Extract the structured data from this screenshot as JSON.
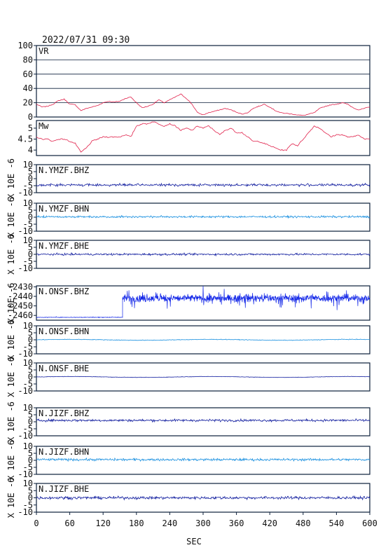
{
  "header": {
    "datetime": "2022/07/31 09:30"
  },
  "colors": {
    "frame": "#0b1f3a",
    "grid": "#0b1f3a",
    "vr": "#e0204a",
    "mw": "#e0204a",
    "dark_trace": "#1420a0",
    "light_trace": "#1a90e0",
    "vertical_trace": "#1428e8"
  },
  "chart_data": {
    "type": "line",
    "xlabel": "SEC",
    "xlim": [
      0,
      600
    ],
    "xticks": [
      0,
      60,
      120,
      180,
      240,
      300,
      360,
      420,
      480,
      540,
      600
    ],
    "panels": [
      {
        "label": "VR",
        "ylim": [
          0,
          100
        ],
        "yticks": [
          0,
          20,
          40,
          60,
          80,
          100
        ],
        "ylabel": "",
        "grid": true,
        "color": "mw",
        "x": [
          0,
          10,
          20,
          30,
          40,
          50,
          60,
          70,
          80,
          90,
          100,
          110,
          120,
          130,
          140,
          150,
          160,
          170,
          180,
          190,
          200,
          210,
          220,
          230,
          240,
          250,
          260,
          270,
          280,
          290,
          300,
          310,
          320,
          330,
          340,
          350,
          360,
          370,
          380,
          390,
          400,
          410,
          420,
          430,
          440,
          450,
          460,
          470,
          480,
          490,
          500,
          510,
          520,
          530,
          540,
          550,
          560,
          570,
          580,
          590,
          600
        ],
        "values": [
          18,
          14,
          15,
          18,
          23,
          25,
          18,
          17,
          9,
          12,
          14,
          16,
          20,
          22,
          21,
          22,
          26,
          28,
          20,
          13,
          15,
          18,
          24,
          20,
          24,
          28,
          32,
          26,
          18,
          6,
          3,
          6,
          8,
          10,
          12,
          10,
          7,
          4,
          6,
          12,
          15,
          18,
          14,
          9,
          6,
          5,
          4,
          3,
          2,
          4,
          6,
          12,
          15,
          17,
          18,
          20,
          18,
          13,
          10,
          12,
          14
        ]
      },
      {
        "label": "Mw",
        "ylim": [
          3.75,
          5.35
        ],
        "yticks": [
          4.0,
          4.5,
          5.0
        ],
        "ylabel": "",
        "grid": false,
        "color": "mw",
        "x": [
          0,
          10,
          20,
          30,
          40,
          50,
          60,
          70,
          80,
          90,
          100,
          110,
          120,
          130,
          140,
          150,
          160,
          170,
          180,
          190,
          200,
          210,
          220,
          230,
          240,
          250,
          260,
          270,
          280,
          290,
          300,
          310,
          320,
          330,
          340,
          350,
          360,
          370,
          380,
          390,
          400,
          410,
          420,
          430,
          440,
          450,
          460,
          470,
          480,
          490,
          500,
          510,
          520,
          530,
          540,
          550,
          560,
          570,
          580,
          590,
          600
        ],
        "values": [
          4.6,
          4.5,
          4.5,
          4.4,
          4.5,
          4.5,
          4.4,
          4.3,
          3.9,
          4.1,
          4.4,
          4.5,
          4.6,
          4.6,
          4.6,
          4.6,
          4.7,
          4.6,
          5.1,
          5.2,
          5.2,
          5.3,
          5.2,
          5.1,
          5.2,
          5.1,
          4.9,
          5.0,
          4.9,
          5.1,
          5.0,
          5.1,
          4.9,
          4.7,
          4.9,
          5.0,
          4.8,
          4.8,
          4.6,
          4.4,
          4.4,
          4.3,
          4.2,
          4.1,
          4.0,
          4.0,
          4.3,
          4.2,
          4.5,
          4.8,
          5.1,
          5.0,
          4.8,
          4.6,
          4.7,
          4.7,
          4.6,
          4.6,
          4.7,
          4.5,
          4.5
        ]
      },
      {
        "label": "N.YMZF.BHZ",
        "ylim": [
          -10,
          10
        ],
        "yticks": [
          -10,
          -5,
          0,
          5,
          10
        ],
        "ylabel": "X 10E -6",
        "grid": false,
        "color": "dark_trace",
        "baseline": -4.5,
        "noise": 0.6
      },
      {
        "label": "N.YMZF.BHN",
        "ylim": [
          -10,
          10
        ],
        "yticks": [
          -10,
          -5,
          0,
          5,
          10
        ],
        "ylabel": "X 10E -6",
        "grid": false,
        "color": "light_trace",
        "baseline": 0.3,
        "noise": 0.5
      },
      {
        "label": "N.YMZF.BHE",
        "ylim": [
          -10,
          10
        ],
        "yticks": [
          -10,
          -5,
          0,
          5,
          10
        ],
        "ylabel": "X 10E -6",
        "grid": false,
        "color": "dark_trace",
        "baseline": 0.0,
        "noise": 0.5
      },
      {
        "label": "N.ONSF.BHZ",
        "ylim": [
          -2465,
          -2429
        ],
        "yticks": [
          -2430,
          -2440,
          -2450,
          -2460
        ],
        "ylabel": "X 10E -6",
        "grid": false,
        "color": "vertical_trace",
        "segments": [
          [
            0,
            155,
            -2462,
            0.3
          ],
          [
            155,
            600,
            -2442,
            4.5
          ]
        ]
      },
      {
        "label": "N.ONSF.BHN",
        "ylim": [
          -10,
          10
        ],
        "yticks": [
          -10,
          -5,
          0,
          5,
          10
        ],
        "ylabel": "X 10E -6",
        "grid": false,
        "color": "light_trace",
        "baseline": 0.0,
        "noise": 0.15
      },
      {
        "label": "N.ONSF.BHE",
        "ylim": [
          -10,
          10
        ],
        "yticks": [
          -10,
          -5,
          0,
          5,
          10
        ],
        "ylabel": "X 10E -6",
        "grid": false,
        "color": "dark_trace",
        "baseline": 0.0,
        "noise": 0.1
      },
      {
        "label": "N.JIZF.BHZ",
        "ylim": [
          -10,
          10
        ],
        "yticks": [
          -10,
          -5,
          0,
          5,
          10
        ],
        "ylabel": "X 10E -6",
        "grid": false,
        "color": "dark_trace",
        "baseline": 1.0,
        "noise": 0.6
      },
      {
        "label": "N.JIZF.BHN",
        "ylim": [
          -10,
          10
        ],
        "yticks": [
          -10,
          -5,
          0,
          5,
          10
        ],
        "ylabel": "X 10E -6",
        "grid": false,
        "color": "light_trace",
        "baseline": 0.5,
        "noise": 0.6
      },
      {
        "label": "N.JIZF.BHE",
        "ylim": [
          -10,
          10
        ],
        "yticks": [
          -10,
          -5,
          0,
          5,
          10
        ],
        "ylabel": "X 10E -6",
        "grid": false,
        "color": "dark_trace",
        "baseline": 0.0,
        "noise": 0.7
      }
    ]
  }
}
